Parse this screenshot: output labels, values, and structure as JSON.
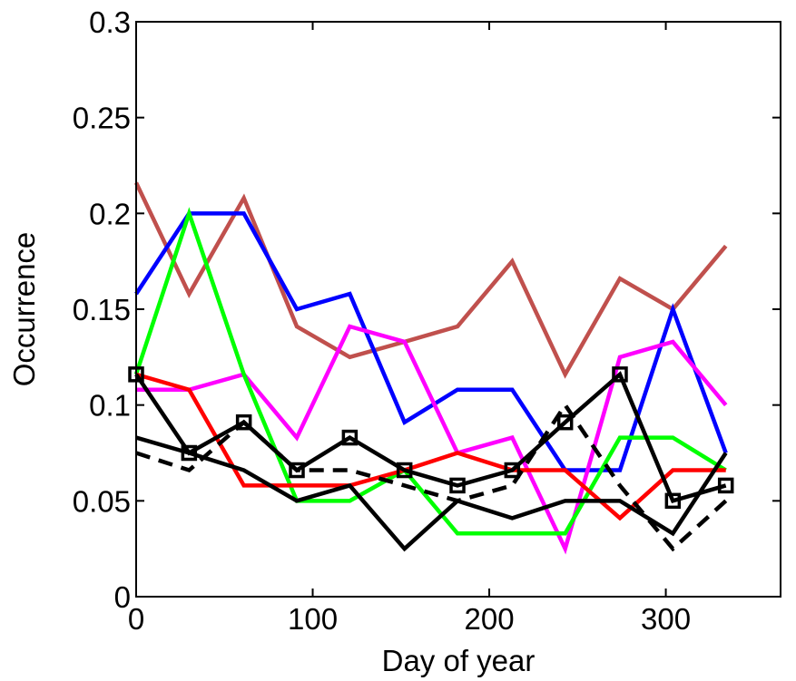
{
  "chart_data": {
    "type": "line",
    "xlabel": "Day of year",
    "ylabel": "Occurrence",
    "xlim": [
      0,
      365
    ],
    "ylim": [
      0,
      0.3
    ],
    "xticks": [
      0,
      100,
      200,
      300
    ],
    "yticks": [
      0,
      0.05,
      0.1,
      0.15,
      0.2,
      0.25,
      0.3
    ],
    "xtick_labels": [
      "0",
      "100",
      "200",
      "300"
    ],
    "ytick_labels": [
      "0",
      "0.05",
      "0.1",
      "0.15",
      "0.2",
      "0.25",
      "0.3"
    ],
    "grid": false,
    "x": [
      0,
      30,
      61,
      91,
      121,
      152,
      182,
      213,
      243,
      274,
      304,
      334
    ],
    "series": [
      {
        "color": "#C0504D",
        "style": "solid",
        "marker": "none",
        "values": [
          0.216,
          0.158,
          0.208,
          0.141,
          0.125,
          0.133,
          0.141,
          0.175,
          0.116,
          0.166,
          0.15,
          0.183
        ]
      },
      {
        "color": "#0000FF",
        "style": "solid",
        "marker": "none",
        "values": [
          0.158,
          0.2,
          0.2,
          0.15,
          0.158,
          0.091,
          0.108,
          0.108,
          0.066,
          0.066,
          0.15,
          0.075
        ]
      },
      {
        "color": "#FF00FF",
        "style": "solid",
        "marker": "none",
        "values": [
          0.108,
          0.108,
          0.116,
          0.083,
          0.141,
          0.133,
          0.075,
          0.083,
          0.025,
          0.125,
          0.133,
          0.1
        ]
      },
      {
        "color": "#00FF00",
        "style": "solid",
        "marker": "none",
        "values": [
          0.116,
          0.2,
          0.116,
          0.05,
          0.05,
          0.066,
          0.033,
          0.033,
          0.033,
          0.083,
          0.083,
          0.066
        ]
      },
      {
        "color": "#FF0000",
        "style": "solid",
        "marker": "none",
        "values": [
          0.116,
          0.108,
          0.058,
          0.058,
          0.058,
          0.066,
          0.075,
          0.066,
          0.066,
          0.041,
          0.066,
          0.066
        ]
      },
      {
        "color": "#000000",
        "style": "solid",
        "marker": "none",
        "values": [
          0.083,
          0.075,
          0.066,
          0.05,
          0.058,
          0.025,
          0.05,
          0.041,
          0.05,
          0.05,
          0.033,
          0.075
        ]
      },
      {
        "color": "#000000",
        "style": "dashed",
        "marker": "none",
        "values": [
          0.075,
          0.066,
          0.091,
          0.066,
          0.066,
          0.058,
          0.05,
          0.058,
          0.1,
          0.058,
          0.025,
          0.05
        ]
      },
      {
        "color": "#000000",
        "style": "solid",
        "marker": "square",
        "values": [
          0.116,
          0.075,
          0.091,
          0.066,
          0.083,
          0.066,
          0.058,
          0.066,
          0.091,
          0.116,
          0.05,
          0.058
        ]
      }
    ]
  }
}
